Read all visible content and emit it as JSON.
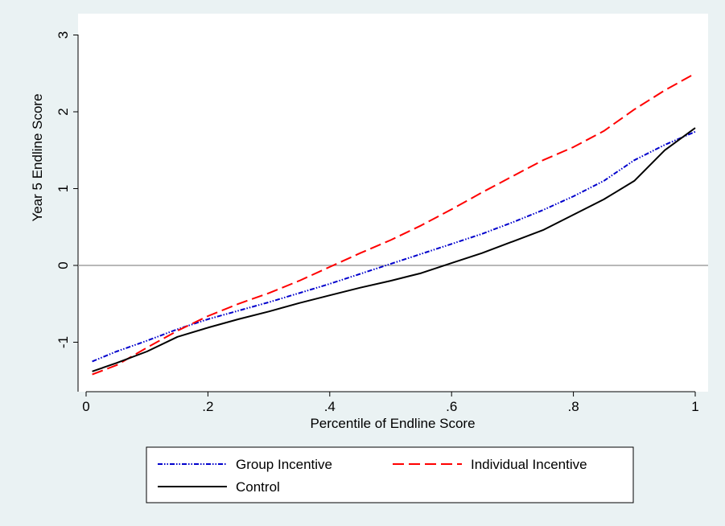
{
  "chart_data": {
    "type": "line",
    "title": "",
    "xlabel": "Percentile of Endline Score",
    "ylabel": "Year 5 Endline Score",
    "xlim": [
      0,
      1
    ],
    "ylim": [
      -1.6,
      3.1
    ],
    "x_ticks": [
      0,
      0.2,
      0.4,
      0.6,
      0.8,
      1
    ],
    "x_tick_labels": [
      "0",
      ".2",
      ".4",
      ".6",
      ".8",
      "1"
    ],
    "y_ticks": [
      -1,
      0,
      1,
      2,
      3
    ],
    "y_tick_labels": [
      "-1",
      "0",
      "1",
      "2",
      "3"
    ],
    "reference_line_y": 0,
    "grid": false,
    "legend_position": "bottom",
    "colors": {
      "background": "#eaf2f3",
      "plot_area": "#ffffff",
      "reference_line": "#a0a0a0"
    },
    "series": [
      {
        "name": "Group Incentive",
        "color": "#0000cc",
        "style": "dash-dot-dot",
        "x": [
          0.01,
          0.05,
          0.1,
          0.15,
          0.2,
          0.25,
          0.3,
          0.35,
          0.4,
          0.45,
          0.5,
          0.55,
          0.6,
          0.65,
          0.7,
          0.75,
          0.8,
          0.85,
          0.9,
          0.95,
          1.0
        ],
        "y": [
          -1.25,
          -1.12,
          -0.98,
          -0.83,
          -0.7,
          -0.59,
          -0.48,
          -0.36,
          -0.24,
          -0.11,
          0.02,
          0.15,
          0.28,
          0.41,
          0.56,
          0.72,
          0.9,
          1.1,
          1.37,
          1.57,
          1.74
        ]
      },
      {
        "name": "Individual Incentive",
        "color": "#ff0000",
        "style": "long-dash",
        "x": [
          0.01,
          0.05,
          0.1,
          0.15,
          0.2,
          0.25,
          0.3,
          0.35,
          0.4,
          0.45,
          0.5,
          0.55,
          0.6,
          0.65,
          0.7,
          0.75,
          0.8,
          0.85,
          0.9,
          0.95,
          1.0
        ],
        "y": [
          -1.42,
          -1.3,
          -1.07,
          -0.85,
          -0.66,
          -0.5,
          -0.36,
          -0.2,
          -0.02,
          0.16,
          0.33,
          0.52,
          0.73,
          0.95,
          1.16,
          1.37,
          1.54,
          1.75,
          2.03,
          2.28,
          2.5
        ]
      },
      {
        "name": "Control",
        "color": "#000000",
        "style": "solid",
        "x": [
          0.01,
          0.05,
          0.1,
          0.15,
          0.2,
          0.25,
          0.3,
          0.35,
          0.4,
          0.45,
          0.5,
          0.55,
          0.6,
          0.65,
          0.7,
          0.75,
          0.8,
          0.85,
          0.9,
          0.95,
          1.0
        ],
        "y": [
          -1.38,
          -1.27,
          -1.12,
          -0.93,
          -0.81,
          -0.7,
          -0.6,
          -0.49,
          -0.39,
          -0.29,
          -0.2,
          -0.1,
          0.03,
          0.16,
          0.31,
          0.46,
          0.66,
          0.86,
          1.1,
          1.5,
          1.79
        ]
      }
    ]
  }
}
